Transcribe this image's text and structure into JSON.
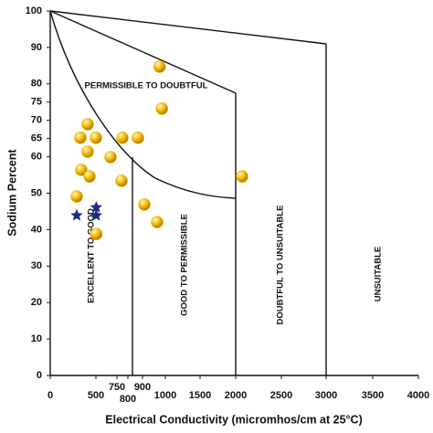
{
  "chart_data": {
    "type": "scatter",
    "xlabel": "Electrical Conductivity (micromhos/cm at 25°C)",
    "ylabel": "Sodium Percent",
    "xlim": [
      0,
      4000
    ],
    "ylim": [
      0,
      100
    ],
    "xticks": [
      0,
      500,
      750,
      800,
      900,
      1000,
      1500,
      2000,
      2500,
      3000,
      3500,
      4000
    ],
    "yticks": [
      0,
      10,
      20,
      30,
      40,
      50,
      60,
      65,
      70,
      75,
      80,
      90,
      100
    ],
    "annotations": [
      "PERMISSIBLE TO DOUBTFUL",
      "EXCELLENT TO GOOD",
      "GOOD TO PERMISSIBLE",
      "DOUBTFUL TO UNSUITABLE",
      "UNSUITABLE"
    ],
    "series": [
      {
        "color": "#f2b705",
        "marker": "circle",
        "x": [
          975,
          985,
          410,
          330,
          500,
          775,
          869,
          410,
          674,
          340,
          430,
          771,
          2070,
          290,
          908,
          964,
          504
        ],
        "values": [
          84.7,
          73.2,
          68.9,
          65.2,
          65.2,
          65.2,
          65.2,
          61.4,
          59.9,
          56.4,
          54.6,
          53.4,
          54.6,
          49.1,
          46.9,
          42.1,
          38.8
        ]
      },
      {
        "color": "#1f2a80",
        "marker": "star",
        "x": [
          290,
          504,
          504
        ],
        "values": [
          43.9,
          46.1,
          43.9
        ]
      }
    ]
  }
}
